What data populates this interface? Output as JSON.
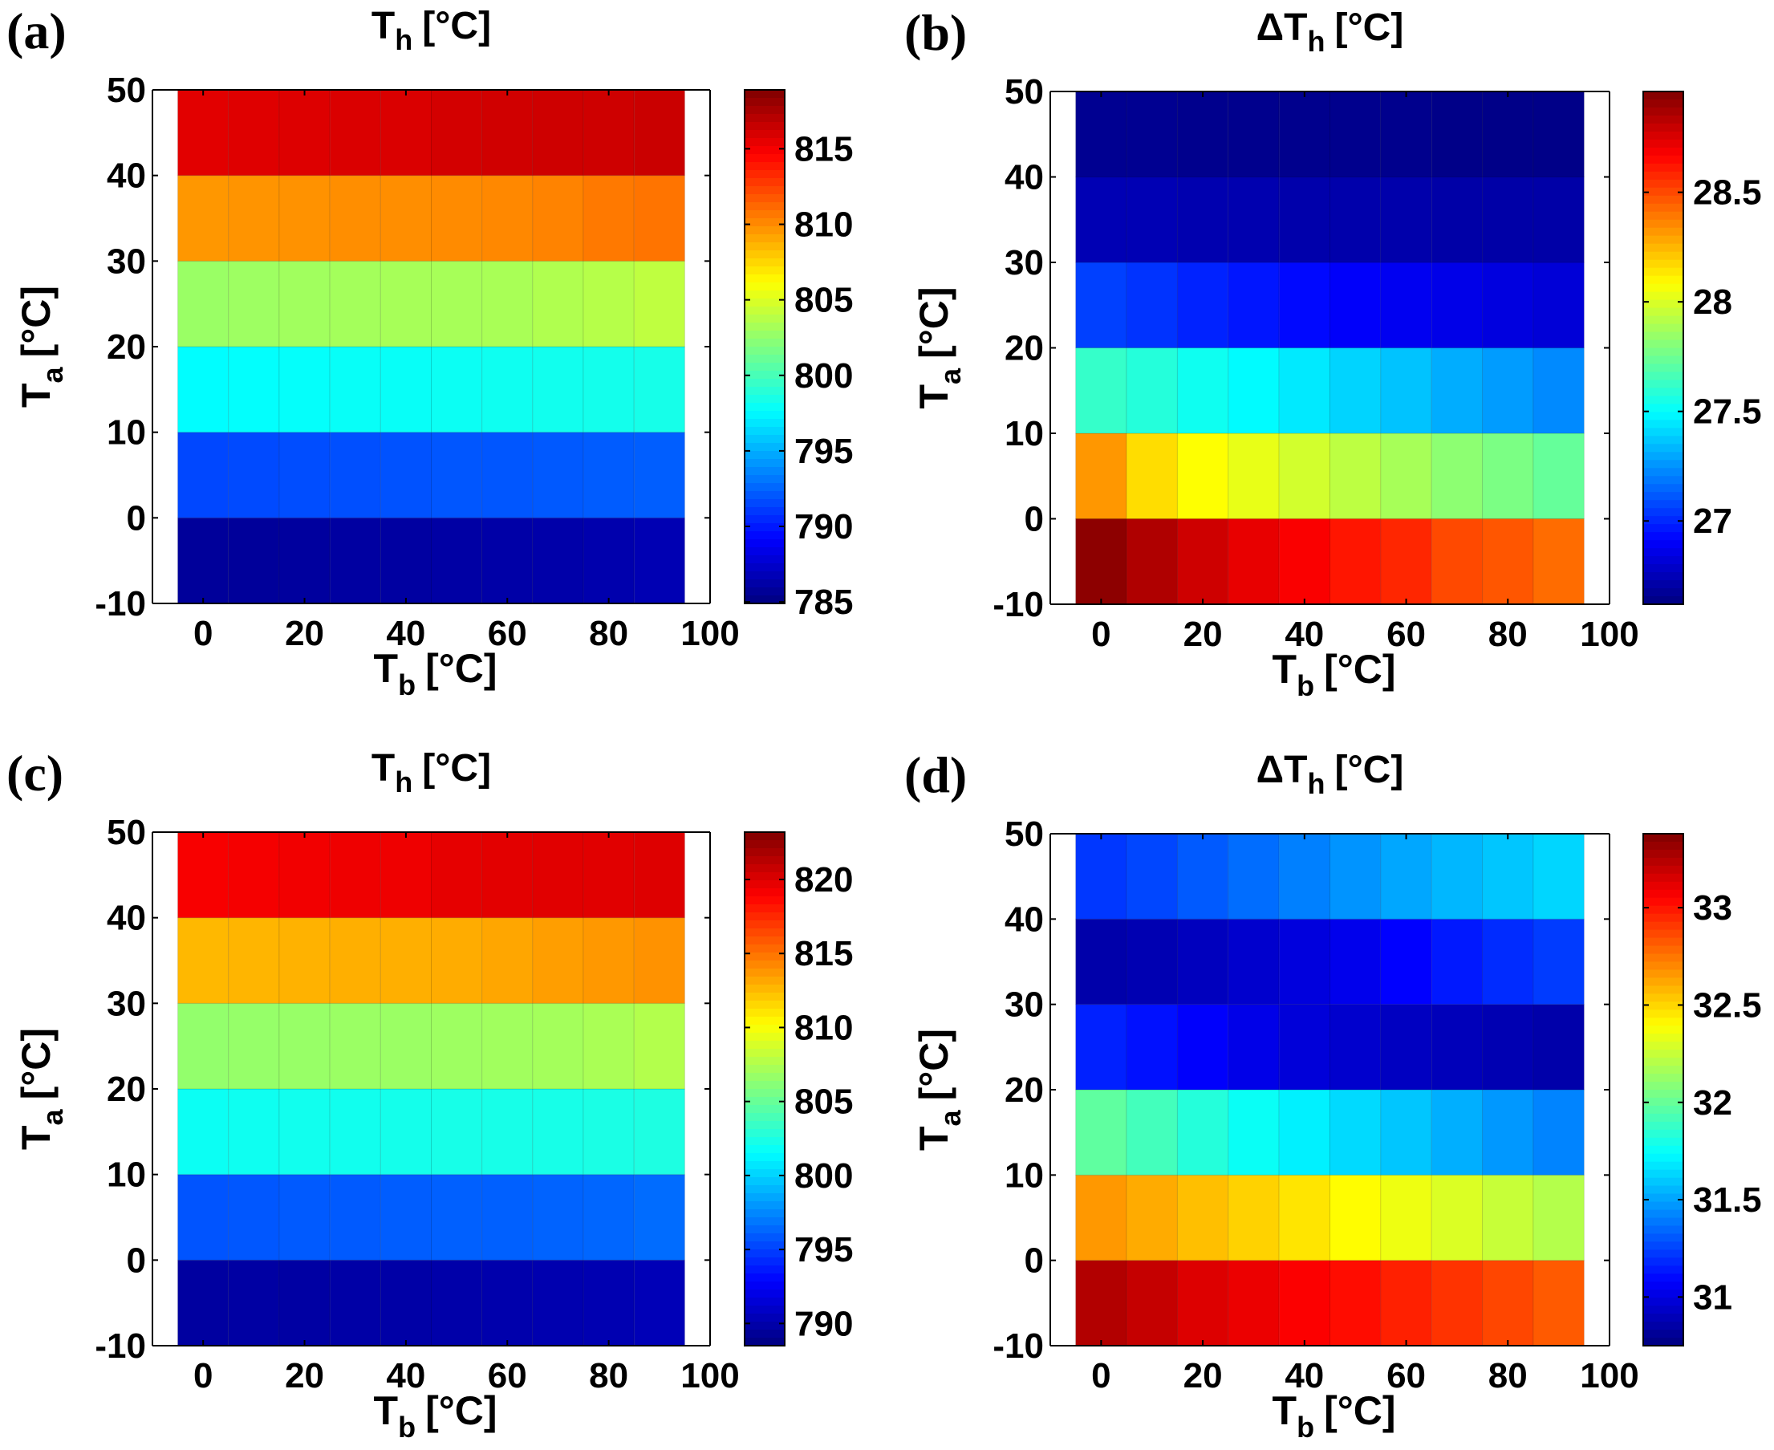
{
  "chart_data": [
    {
      "type": "heatmap",
      "panel_label": "(a)",
      "title_main": "T",
      "title_sub": "h",
      "title_unit": "[°C]",
      "xlabel_main": "T",
      "xlabel_sub": "b",
      "xlabel_unit": "[°C]",
      "ylabel_main": "T",
      "ylabel_sub": "a",
      "ylabel_unit": "[°C]",
      "xlim": [
        -10,
        100
      ],
      "ylim": [
        -10,
        50
      ],
      "x_ticks": [
        "0",
        "20",
        "40",
        "60",
        "80",
        "100"
      ],
      "y_ticks": [
        "-10",
        "0",
        "10",
        "20",
        "30",
        "40",
        "50"
      ],
      "x_centers": [
        0,
        10,
        20,
        30,
        40,
        50,
        60,
        70,
        80,
        90
      ],
      "y_centers": [
        -5,
        5,
        15,
        25,
        35,
        45
      ],
      "z": [
        [
          785.8,
          785.8,
          785.9,
          786.0,
          786.0,
          786.1,
          786.2,
          786.3,
          786.4,
          786.6
        ],
        [
          791.5,
          791.6,
          791.7,
          791.8,
          791.9,
          792.0,
          792.0,
          792.1,
          792.2,
          792.3
        ],
        [
          797.6,
          797.7,
          797.8,
          797.9,
          797.9,
          798.0,
          798.1,
          798.2,
          798.3,
          798.4
        ],
        [
          802.8,
          802.9,
          803.0,
          803.1,
          803.2,
          803.2,
          803.3,
          803.5,
          803.7,
          804.0
        ],
        [
          809.6,
          809.7,
          809.8,
          809.9,
          809.9,
          810.0,
          810.1,
          810.3,
          810.6,
          810.8
        ],
        [
          815.6,
          815.7,
          815.8,
          815.9,
          815.9,
          816.1,
          816.2,
          816.3,
          816.3,
          816.4
        ]
      ],
      "clim": [
        784.9,
        818.9
      ],
      "cbar_ticks": [
        "785",
        "790",
        "795",
        "800",
        "805",
        "810",
        "815"
      ]
    },
    {
      "type": "heatmap",
      "panel_label": "(b)",
      "title_main": "ΔT",
      "title_sub": "h",
      "title_unit": "[°C]",
      "xlabel_main": "T",
      "xlabel_sub": "b",
      "xlabel_unit": "[°C]",
      "ylabel_main": "T",
      "ylabel_sub": "a",
      "ylabel_unit": "[°C]",
      "xlim": [
        -10,
        100
      ],
      "ylim": [
        -10,
        50
      ],
      "x_ticks": [
        "0",
        "20",
        "40",
        "60",
        "80",
        "100"
      ],
      "y_ticks": [
        "-10",
        "0",
        "10",
        "20",
        "30",
        "40",
        "50"
      ],
      "x_centers": [
        0,
        10,
        20,
        30,
        40,
        50,
        60,
        70,
        80,
        90
      ],
      "y_centers": [
        -5,
        5,
        15,
        25,
        35,
        45
      ],
      "z": [
        [
          28.93,
          28.85,
          28.78,
          28.72,
          28.68,
          28.62,
          28.58,
          28.5,
          28.47,
          28.42
        ],
        [
          28.32,
          28.16,
          28.08,
          28.03,
          27.98,
          27.93,
          27.88,
          27.82,
          27.78,
          27.73
        ],
        [
          27.62,
          27.58,
          27.53,
          27.49,
          27.45,
          27.4,
          27.36,
          27.31,
          27.27,
          27.23
        ],
        [
          27.06,
          27.03,
          26.99,
          26.96,
          26.93,
          26.9,
          26.88,
          26.86,
          26.84,
          26.82
        ],
        [
          26.74,
          26.74,
          26.73,
          26.73,
          26.72,
          26.72,
          26.72,
          26.71,
          26.71,
          26.71
        ],
        [
          26.66,
          26.66,
          26.65,
          26.65,
          26.65,
          26.65,
          26.65,
          26.64,
          26.64,
          26.64
        ]
      ],
      "clim": [
        26.62,
        28.96
      ],
      "cbar_ticks": [
        "27",
        "27.5",
        "28",
        "28.5"
      ]
    },
    {
      "type": "heatmap",
      "panel_label": "(c)",
      "title_main": "T",
      "title_sub": "h",
      "title_unit": "[°C]",
      "xlabel_main": "T",
      "xlabel_sub": "b",
      "xlabel_unit": "[°C]",
      "ylabel_main": "T",
      "ylabel_sub": "a",
      "ylabel_unit": "[°C]",
      "xlim": [
        -10,
        100
      ],
      "ylim": [
        -10,
        50
      ],
      "x_ticks": [
        "0",
        "20",
        "40",
        "60",
        "80",
        "100"
      ],
      "y_ticks": [
        "-10",
        "0",
        "10",
        "20",
        "30",
        "40",
        "50"
      ],
      "x_centers": [
        0,
        10,
        20,
        30,
        40,
        50,
        60,
        70,
        80,
        90
      ],
      "y_centers": [
        -5,
        5,
        15,
        25,
        35,
        45
      ],
      "z": [
        [
          789.6,
          789.7,
          789.7,
          789.8,
          789.8,
          789.9,
          790.0,
          790.1,
          790.2,
          790.4
        ],
        [
          795.7,
          795.8,
          795.9,
          795.9,
          796.0,
          796.1,
          796.1,
          796.2,
          796.3,
          796.5
        ],
        [
          801.9,
          802.0,
          802.1,
          802.1,
          802.2,
          802.3,
          802.3,
          802.3,
          802.4,
          802.5
        ],
        [
          806.5,
          806.6,
          806.7,
          806.8,
          806.8,
          806.9,
          807.0,
          807.1,
          807.3,
          807.6
        ],
        [
          812.6,
          812.7,
          812.8,
          812.9,
          812.9,
          813.0,
          813.2,
          813.5,
          813.7,
          813.9
        ],
        [
          819.1,
          819.2,
          819.3,
          819.4,
          819.4,
          819.7,
          819.8,
          819.9,
          819.9,
          820.0
        ]
      ],
      "clim": [
        788.5,
        823.2
      ],
      "cbar_ticks": [
        "790",
        "795",
        "800",
        "805",
        "810",
        "815",
        "820"
      ]
    },
    {
      "type": "heatmap",
      "panel_label": "(d)",
      "title_main": "ΔT",
      "title_sub": "h",
      "title_unit": "[°C]",
      "xlabel_main": "T",
      "xlabel_sub": "b",
      "xlabel_unit": "[°C]",
      "ylabel_main": "T",
      "ylabel_sub": "a",
      "ylabel_unit": "[°C]",
      "xlim": [
        -10,
        100
      ],
      "ylim": [
        -10,
        50
      ],
      "x_ticks": [
        "0",
        "20",
        "40",
        "60",
        "80",
        "100"
      ],
      "y_ticks": [
        "-10",
        "0",
        "10",
        "20",
        "30",
        "40",
        "50"
      ],
      "x_centers": [
        0,
        10,
        20,
        30,
        40,
        50,
        60,
        70,
        80,
        90
      ],
      "y_centers": [
        -5,
        5,
        15,
        25,
        35,
        45
      ],
      "z": [
        [
          33.25,
          33.2,
          33.14,
          33.1,
          33.06,
          33.02,
          32.97,
          32.92,
          32.87,
          32.82
        ],
        [
          32.66,
          32.61,
          32.56,
          32.51,
          32.46,
          32.4,
          32.35,
          32.3,
          32.25,
          32.2
        ],
        [
          31.98,
          31.91,
          31.83,
          31.76,
          31.7,
          31.64,
          31.59,
          31.53,
          31.47,
          31.42
        ],
        [
          31.16,
          31.12,
          31.07,
          31.02,
          30.98,
          30.95,
          30.92,
          30.9,
          30.88,
          30.86
        ],
        [
          30.86,
          30.88,
          30.91,
          30.95,
          30.99,
          31.03,
          31.08,
          31.14,
          31.19,
          31.23
        ],
        [
          31.22,
          31.26,
          31.31,
          31.36,
          31.41,
          31.46,
          31.51,
          31.55,
          31.59,
          31.63
        ]
      ],
      "clim": [
        30.75,
        33.38
      ],
      "cbar_ticks": [
        "31",
        "31.5",
        "32",
        "32.5",
        "33"
      ]
    }
  ]
}
